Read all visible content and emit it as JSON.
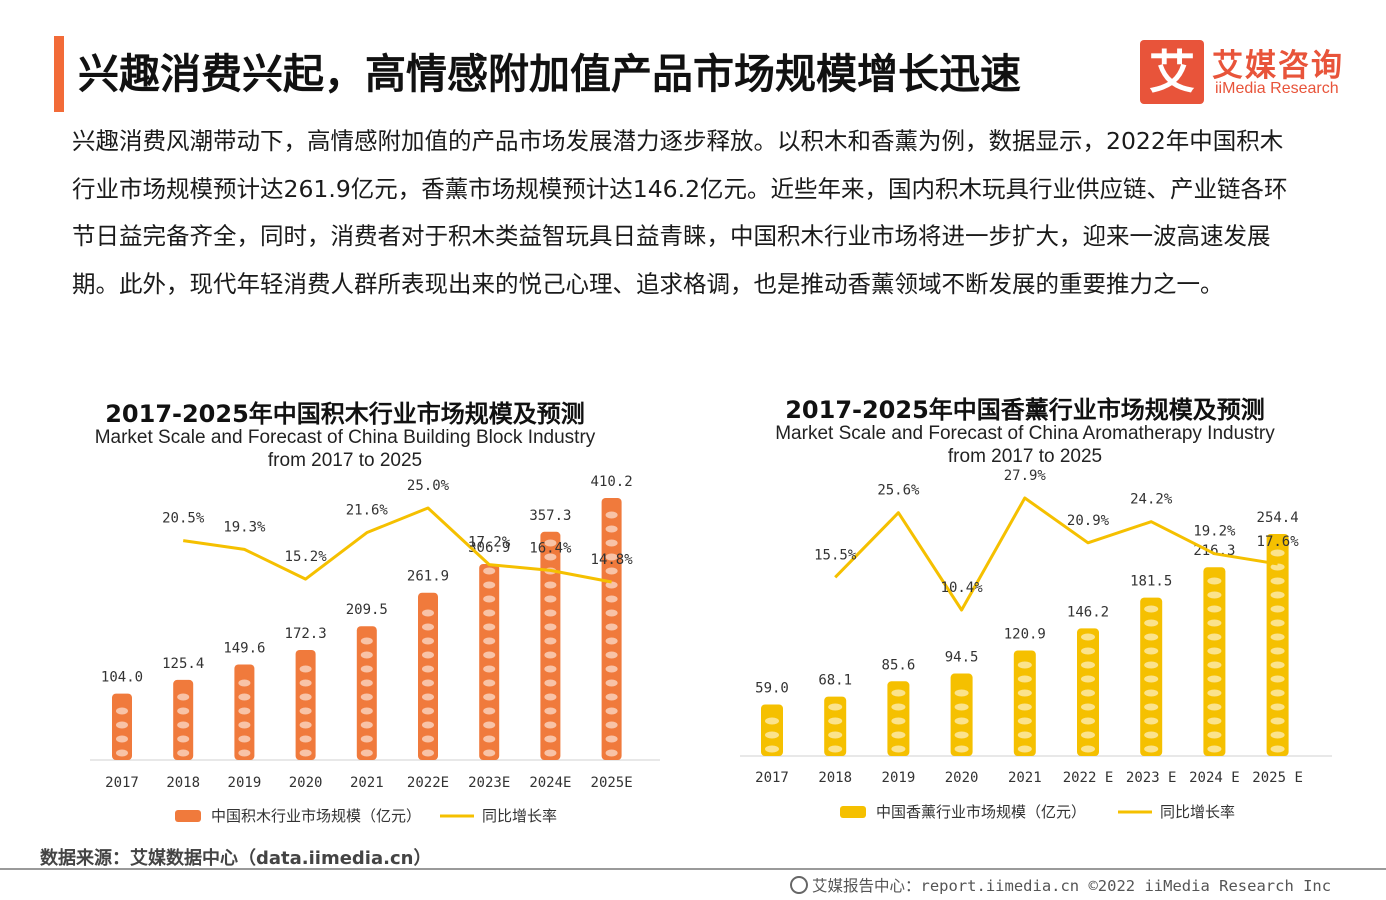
{
  "page": {
    "title": "兴趣消费兴起，高情感附加值产品市场规模增长迅速",
    "logo_char": "艾",
    "logo_cn": "艾媒咨询",
    "logo_en": "iiMedia Research",
    "intro": "兴趣消费风潮带动下，高情感附加值的产品市场发展潜力逐步释放。以积木和香薰为例，数据显示，2022年中国积木行业市场规模预计达261.9亿元，香薰市场规模预计达146.2亿元。近些年来，国内积木玩具行业供应链、产业链各环节日益完备齐全，同时，消费者对于积木类益智玩具日益青睐，中国积木行业市场将进一步扩大，迎来一波高速发展期。此外，现代年轻消费人群所表现出来的悦己心理、追求格调，也是推动香薰领域不断发展的重要推力之一。",
    "source": "数据来源：艾媒数据中心（data.iimedia.cn）",
    "footer": "艾媒报告中心：report.iimedia.cn  ©2022  iiMedia Research  Inc",
    "accent_color": "#f26b38"
  },
  "chart_data": [
    {
      "type": "bar",
      "title": "2017-2025年中国积木行业市场规模及预测",
      "subtitle_line1": "Market Scale and Forecast of China Building Block Industry",
      "subtitle_line2": "from 2017 to 2025",
      "categories": [
        "2017",
        "2018",
        "2019",
        "2020",
        "2021",
        "2022E",
        "2023E",
        "2024E",
        "2025E"
      ],
      "series": [
        {
          "name": "中国积木行业市场规模（亿元）",
          "kind": "bar",
          "values": [
            104.0,
            125.4,
            149.6,
            172.3,
            209.5,
            261.9,
            306.9,
            357.3,
            410.2
          ],
          "labels": [
            "104.0",
            "125.4",
            "149.6",
            "172.3",
            "209.5",
            "261.9",
            "306.9",
            "357.3",
            "410.2"
          ],
          "color": "#f07a3c"
        },
        {
          "name": "同比增长率",
          "kind": "line",
          "values": [
            null,
            20.5,
            19.3,
            15.2,
            21.6,
            25.0,
            17.2,
            16.4,
            14.8
          ],
          "labels": [
            "",
            "20.5%",
            "19.3%",
            "15.2%",
            "21.6%",
            "25.0%",
            "17.2%",
            "16.4%",
            "14.8%"
          ],
          "color": "#f5c000"
        }
      ]
    },
    {
      "type": "bar",
      "title": "2017-2025年中国香薰行业市场规模及预测",
      "subtitle_line1": "Market Scale and Forecast of China Aromatherapy Industry",
      "subtitle_line2": "from 2017 to 2025",
      "categories": [
        "2017",
        "2018",
        "2019",
        "2020",
        "2021",
        "2022 E",
        "2023 E",
        "2024 E",
        "2025 E"
      ],
      "series": [
        {
          "name": "中国香薰行业市场规模（亿元）",
          "kind": "bar",
          "values": [
            59.0,
            68.1,
            85.6,
            94.5,
            120.9,
            146.2,
            181.5,
            216.3,
            254.4
          ],
          "labels": [
            "59.0",
            "68.1",
            "85.6",
            "94.5",
            "120.9",
            "146.2",
            "181.5",
            "216.3",
            "254.4"
          ],
          "color": "#f5c000"
        },
        {
          "name": "同比增长率",
          "kind": "line",
          "values": [
            null,
            15.5,
            25.6,
            10.4,
            27.9,
            20.9,
            24.2,
            19.2,
            17.6
          ],
          "labels": [
            "",
            "15.5%",
            "25.6%",
            "10.4%",
            "27.9%",
            "20.9%",
            "24.2%",
            "19.2%",
            "17.6%"
          ],
          "color": "#f5c000"
        }
      ]
    }
  ]
}
